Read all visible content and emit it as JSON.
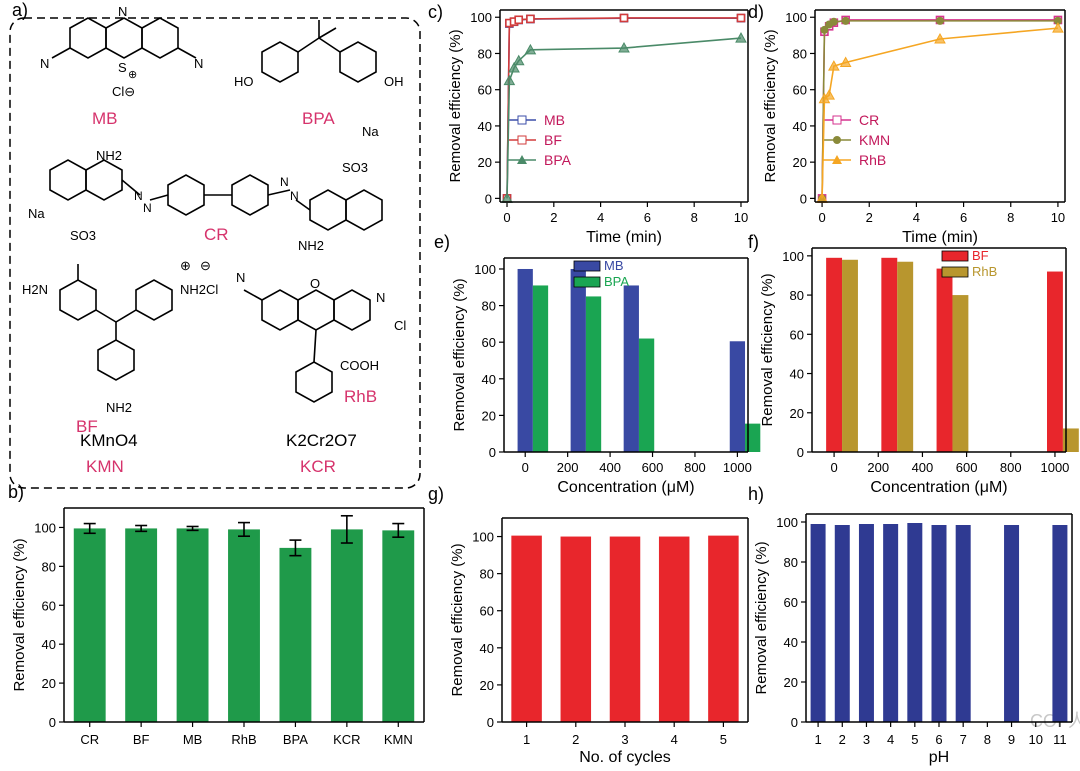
{
  "panel_a": {
    "label": "a)",
    "molecules": [
      {
        "abbr": "MB",
        "atoms": [
          "N",
          "S",
          "⊕",
          "N",
          "N",
          "Cl⊖"
        ]
      },
      {
        "abbr": "BPA",
        "atoms": [
          "HO",
          "OH"
        ]
      },
      {
        "abbr": "CR",
        "atoms": [
          "NH2",
          "N",
          "N",
          "N",
          "N",
          "NH2",
          "Na",
          "Na",
          "SO3",
          "SO3"
        ]
      },
      {
        "abbr": "BF",
        "atoms": [
          "H2N",
          "NH2Cl",
          "NH2",
          "⊕",
          "⊖"
        ]
      },
      {
        "abbr": "RhB",
        "atoms": [
          "N",
          "O",
          "N",
          "Cl",
          "COOH"
        ]
      },
      {
        "abbr": "KMN",
        "formula": "KMnO4"
      },
      {
        "abbr": "KCR",
        "formula": "K2Cr2O7"
      }
    ]
  },
  "chart_data": [
    {
      "panel": "b)",
      "type": "bar",
      "categories": [
        "CR",
        "BF",
        "MB",
        "RhB",
        "BPA",
        "KCR",
        "KMN"
      ],
      "values": [
        99.5,
        99.5,
        99.5,
        99.0,
        89.5,
        99.0,
        98.5
      ],
      "errors": [
        2.5,
        1.5,
        1.0,
        3.5,
        4.0,
        7.0,
        3.5
      ],
      "ylabel": "Removal efficiency (%)",
      "xlabel": "",
      "ylim": [
        0,
        110
      ],
      "yticks": [
        0,
        20,
        40,
        60,
        80,
        100
      ],
      "color": "#1f9a4a"
    },
    {
      "panel": "c)",
      "type": "line",
      "xlabel": "Time (min)",
      "ylabel": "Removal efficiency (%)",
      "xlim": [
        -0.3,
        10.3
      ],
      "ylim": [
        -2,
        104
      ],
      "xticks": [
        0,
        2,
        4,
        6,
        8,
        10
      ],
      "yticks": [
        0,
        20,
        40,
        60,
        80,
        100
      ],
      "series": [
        {
          "name": "MB",
          "color": "#3b4ea8",
          "marker": "square",
          "x": [
            0,
            0.1,
            0.3,
            0.5,
            1,
            5,
            10
          ],
          "y": [
            0,
            96.5,
            97.5,
            98.5,
            99,
            99.5,
            99.5
          ]
        },
        {
          "name": "BF",
          "color": "#d23b3b",
          "marker": "square",
          "x": [
            0,
            0.1,
            0.3,
            0.5,
            1,
            5,
            10
          ],
          "y": [
            0,
            96.8,
            97.6,
            98.6,
            99.1,
            99.6,
            99.6
          ]
        },
        {
          "name": "BPA",
          "color": "#4a8a68",
          "marker": "triangle",
          "x": [
            0,
            0.1,
            0.3,
            0.5,
            1,
            5,
            10
          ],
          "y": [
            0,
            65,
            72,
            76,
            82,
            83,
            88.5
          ]
        }
      ]
    },
    {
      "panel": "d)",
      "type": "line",
      "xlabel": "Time (min)",
      "ylabel": "Removal efficiency (%)",
      "xlim": [
        -0.3,
        10.3
      ],
      "ylim": [
        -2,
        104
      ],
      "xticks": [
        0,
        2,
        4,
        6,
        8,
        10
      ],
      "yticks": [
        0,
        20,
        40,
        60,
        80,
        100
      ],
      "series": [
        {
          "name": "CR",
          "color": "#d6338f",
          "marker": "square",
          "x": [
            0,
            0.1,
            0.3,
            0.5,
            1,
            5,
            10
          ],
          "y": [
            0,
            92,
            95,
            97,
            98.5,
            98.5,
            98.5
          ]
        },
        {
          "name": "KMN",
          "color": "#8a8a3a",
          "marker": "circle",
          "x": [
            0,
            0.1,
            0.3,
            0.5,
            1,
            5,
            10
          ],
          "y": [
            0,
            93,
            96,
            97.5,
            98,
            98,
            98
          ]
        },
        {
          "name": "RhB",
          "color": "#f5a623",
          "marker": "triangle",
          "x": [
            0,
            0.1,
            0.3,
            0.5,
            1,
            5,
            10
          ],
          "y": [
            0,
            55,
            57,
            73,
            75,
            88,
            94
          ]
        }
      ]
    },
    {
      "panel": "e)",
      "type": "bar",
      "xlabel": "Concentration (μM)",
      "ylabel": "Removal efficiency (%)",
      "xlim": [
        -100,
        1050
      ],
      "ylim": [
        0,
        106
      ],
      "xticks": [
        0,
        200,
        400,
        600,
        800,
        1000
      ],
      "yticks": [
        0,
        20,
        40,
        60,
        80,
        100
      ],
      "bar_width_units": 72,
      "series": [
        {
          "name": "MB",
          "color": "#3949a3",
          "x": [
            0,
            250,
            500,
            1000
          ],
          "values": [
            100,
            100,
            91,
            60.5
          ]
        },
        {
          "name": "BPA",
          "color": "#1aa552",
          "x": [
            0,
            250,
            500,
            1000
          ],
          "values": [
            91,
            85,
            62,
            15.5
          ]
        }
      ]
    },
    {
      "panel": "f)",
      "type": "bar",
      "xlabel": "Concentration (μM)",
      "ylabel": "Removal efficiency (%)",
      "xlim": [
        -100,
        1050
      ],
      "ylim": [
        0,
        104
      ],
      "xticks": [
        0,
        200,
        400,
        600,
        800,
        1000
      ],
      "yticks": [
        0,
        20,
        40,
        60,
        80,
        100
      ],
      "bar_width_units": 72,
      "series": [
        {
          "name": "BF",
          "color": "#e8262c",
          "x": [
            0,
            250,
            500,
            1000
          ],
          "values": [
            99,
            99,
            93.5,
            92
          ]
        },
        {
          "name": "RhB",
          "color": "#b8962e",
          "x": [
            0,
            250,
            500,
            1000
          ],
          "values": [
            98,
            97,
            80,
            12
          ]
        }
      ]
    },
    {
      "panel": "g)",
      "type": "bar",
      "categories": [
        "1",
        "2",
        "3",
        "4",
        "5"
      ],
      "values": [
        100.5,
        100,
        100,
        100,
        100.5
      ],
      "xlabel": "No. of cycles",
      "ylabel": "Removal efficiency (%)",
      "ylim": [
        0,
        110
      ],
      "yticks": [
        0,
        20,
        40,
        60,
        80,
        100
      ],
      "color": "#e8262c"
    },
    {
      "panel": "h)",
      "type": "bar",
      "categories": [
        "1",
        "2",
        "3",
        "4",
        "5",
        "6",
        "7",
        "8",
        "9",
        "10",
        "11"
      ],
      "values": [
        99,
        98.5,
        99,
        99,
        99.5,
        98.5,
        98.5,
        null,
        98.5,
        null,
        98.5
      ],
      "xlabel": "pH",
      "ylabel": "Removal efficiency (%)",
      "ylim": [
        0,
        104
      ],
      "yticks": [
        0,
        20,
        40,
        60,
        80,
        100
      ],
      "color": "#2f3a92"
    }
  ],
  "watermark": "COF人"
}
